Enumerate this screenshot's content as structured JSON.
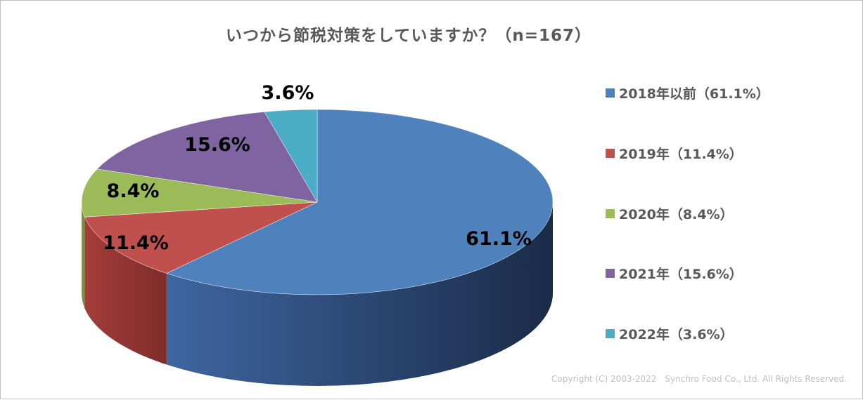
{
  "chart_data": {
    "type": "pie",
    "title": "いつから節税対策をしていますか？（n=167）",
    "slices": [
      {
        "label": "2018年以前",
        "value": 61.1,
        "data_label": "61.1%",
        "legend": "2018年以前（61.1%）",
        "color": "#4F81BD"
      },
      {
        "label": "2019年",
        "value": 11.4,
        "data_label": "11.4%",
        "legend": "2019年（11.4%）",
        "color": "#C0504D"
      },
      {
        "label": "2020年",
        "value": 8.4,
        "data_label": "8.4%",
        "legend": "2020年（8.4%）",
        "color": "#9BBB59"
      },
      {
        "label": "2021年",
        "value": 15.6,
        "data_label": "15.6%",
        "legend": "2021年（15.6%）",
        "color": "#8064A2"
      },
      {
        "label": "2022年",
        "value": 3.6,
        "data_label": "3.6%",
        "legend": "2022年（3.6%）",
        "color": "#4BACC6"
      }
    ],
    "legend_position": "right",
    "style": "3d"
  },
  "footer": {
    "copyright": "Copyright (C) 2003-2022　Synchro Food Co., Ltd. All Rights Reserved."
  }
}
